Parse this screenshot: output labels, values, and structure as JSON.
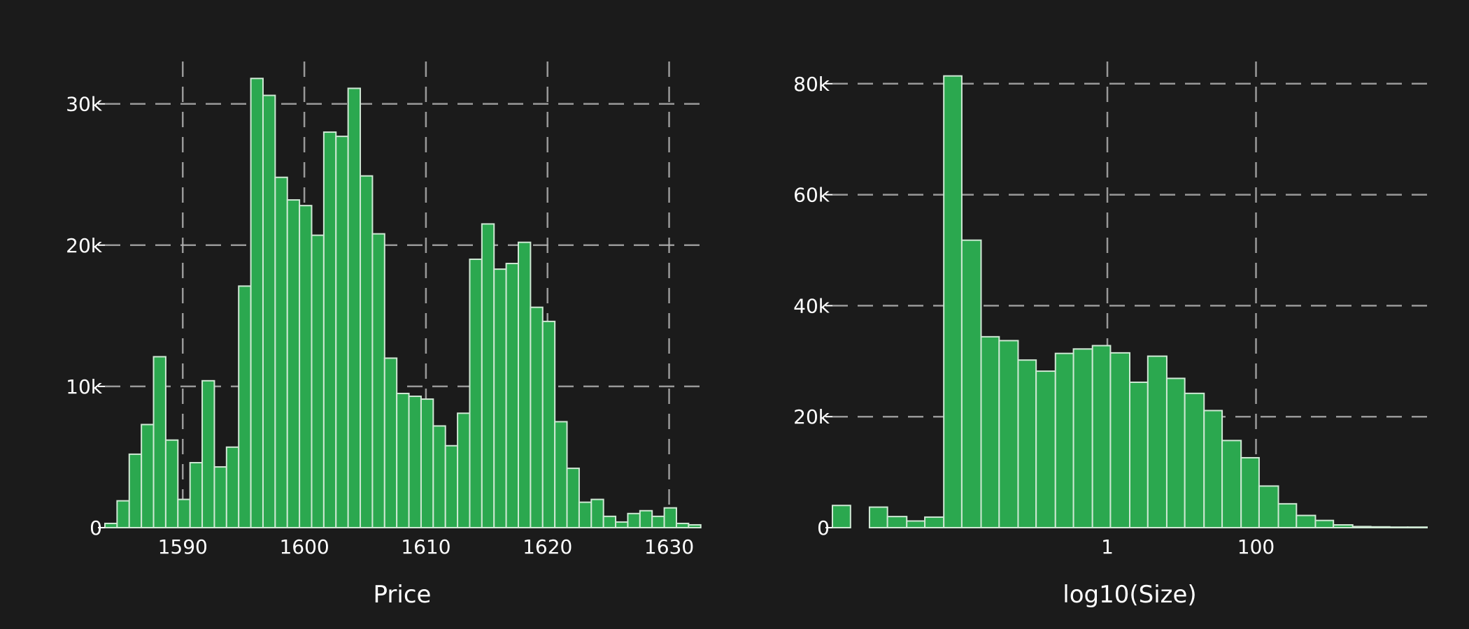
{
  "theme": {
    "background": "#1b1b1b",
    "bar_color": "#2ba84f",
    "bar_edge": "#cfe8d4",
    "grid_color": "#b0b0b0",
    "text_color": "#ffffff"
  },
  "chart_data": [
    {
      "type": "bar",
      "subtype": "histogram",
      "title": "",
      "xlabel": "Price",
      "ylabel": "",
      "grid": true,
      "xlim": [
        1583.6,
        1632.5
      ],
      "ylim": [
        0,
        33000
      ],
      "x_ticks": [
        1590,
        1600,
        1610,
        1620,
        1630
      ],
      "x_tick_labels": [
        "1590",
        "1600",
        "1610",
        "1620",
        "1630"
      ],
      "y_ticks": [
        0,
        10000,
        20000,
        30000
      ],
      "y_tick_labels": [
        "0",
        "10k",
        "20k",
        "30k"
      ],
      "bin_start": 1583.6,
      "bin_width": 1.0,
      "values": [
        300,
        1900,
        5200,
        7300,
        12100,
        6200,
        2000,
        4600,
        10400,
        4300,
        5700,
        17100,
        31800,
        30600,
        24800,
        23200,
        22800,
        20700,
        28000,
        27700,
        31100,
        24900,
        20800,
        12000,
        9500,
        9300,
        9100,
        7200,
        5800,
        8100,
        19000,
        21500,
        18300,
        18700,
        20200,
        15600,
        14600,
        7500,
        4200,
        1800,
        2000,
        800,
        400,
        1000,
        1200,
        800,
        1400,
        300,
        200
      ]
    },
    {
      "type": "bar",
      "subtype": "histogram",
      "title": "",
      "xlabel": "log10(Size)",
      "ylabel": "",
      "grid": true,
      "log_x": true,
      "xlim": [
        0.0002,
        20000
      ],
      "ylim": [
        0,
        84000
      ],
      "x_ticks": [
        1,
        100
      ],
      "x_tick_labels": [
        "1",
        "100"
      ],
      "y_ticks": [
        0,
        20000,
        40000,
        60000,
        80000
      ],
      "y_tick_labels": [
        "0",
        "20k",
        "40k",
        "60k",
        "80k"
      ],
      "bins": [
        {
          "x0": 0.0002,
          "x1": 0.00035,
          "value": 4000
        },
        {
          "x0": 0.00063,
          "x1": 0.0011,
          "value": 3700
        },
        {
          "x0": 0.0011,
          "x1": 0.002,
          "value": 2000
        },
        {
          "x0": 0.002,
          "x1": 0.0035,
          "value": 1200
        },
        {
          "x0": 0.0035,
          "x1": 0.0063,
          "value": 1900
        },
        {
          "x0": 0.0063,
          "x1": 0.011,
          "value": 81400
        },
        {
          "x0": 0.011,
          "x1": 0.02,
          "value": 51800
        },
        {
          "x0": 0.02,
          "x1": 0.035,
          "value": 34400
        },
        {
          "x0": 0.035,
          "x1": 0.063,
          "value": 33700
        },
        {
          "x0": 0.063,
          "x1": 0.11,
          "value": 30200
        },
        {
          "x0": 0.11,
          "x1": 0.2,
          "value": 28200
        },
        {
          "x0": 0.2,
          "x1": 0.35,
          "value": 31400
        },
        {
          "x0": 0.35,
          "x1": 0.63,
          "value": 32200
        },
        {
          "x0": 0.63,
          "x1": 1.1,
          "value": 32800
        },
        {
          "x0": 1.1,
          "x1": 2.0,
          "value": 31500
        },
        {
          "x0": 2.0,
          "x1": 3.5,
          "value": 26200
        },
        {
          "x0": 3.5,
          "x1": 6.3,
          "value": 30900
        },
        {
          "x0": 6.3,
          "x1": 11,
          "value": 26900
        },
        {
          "x0": 11,
          "x1": 20,
          "value": 24200
        },
        {
          "x0": 20,
          "x1": 35,
          "value": 21100
        },
        {
          "x0": 35,
          "x1": 63,
          "value": 15700
        },
        {
          "x0": 63,
          "x1": 110,
          "value": 12600
        },
        {
          "x0": 110,
          "x1": 200,
          "value": 7500
        },
        {
          "x0": 200,
          "x1": 350,
          "value": 4300
        },
        {
          "x0": 350,
          "x1": 630,
          "value": 2200
        },
        {
          "x0": 630,
          "x1": 1100,
          "value": 1300
        },
        {
          "x0": 1100,
          "x1": 2000,
          "value": 500
        },
        {
          "x0": 2000,
          "x1": 3500,
          "value": 200
        },
        {
          "x0": 3500,
          "x1": 6300,
          "value": 150
        },
        {
          "x0": 6300,
          "x1": 11000,
          "value": 100
        },
        {
          "x0": 11000,
          "x1": 20000,
          "value": 100
        }
      ]
    }
  ]
}
